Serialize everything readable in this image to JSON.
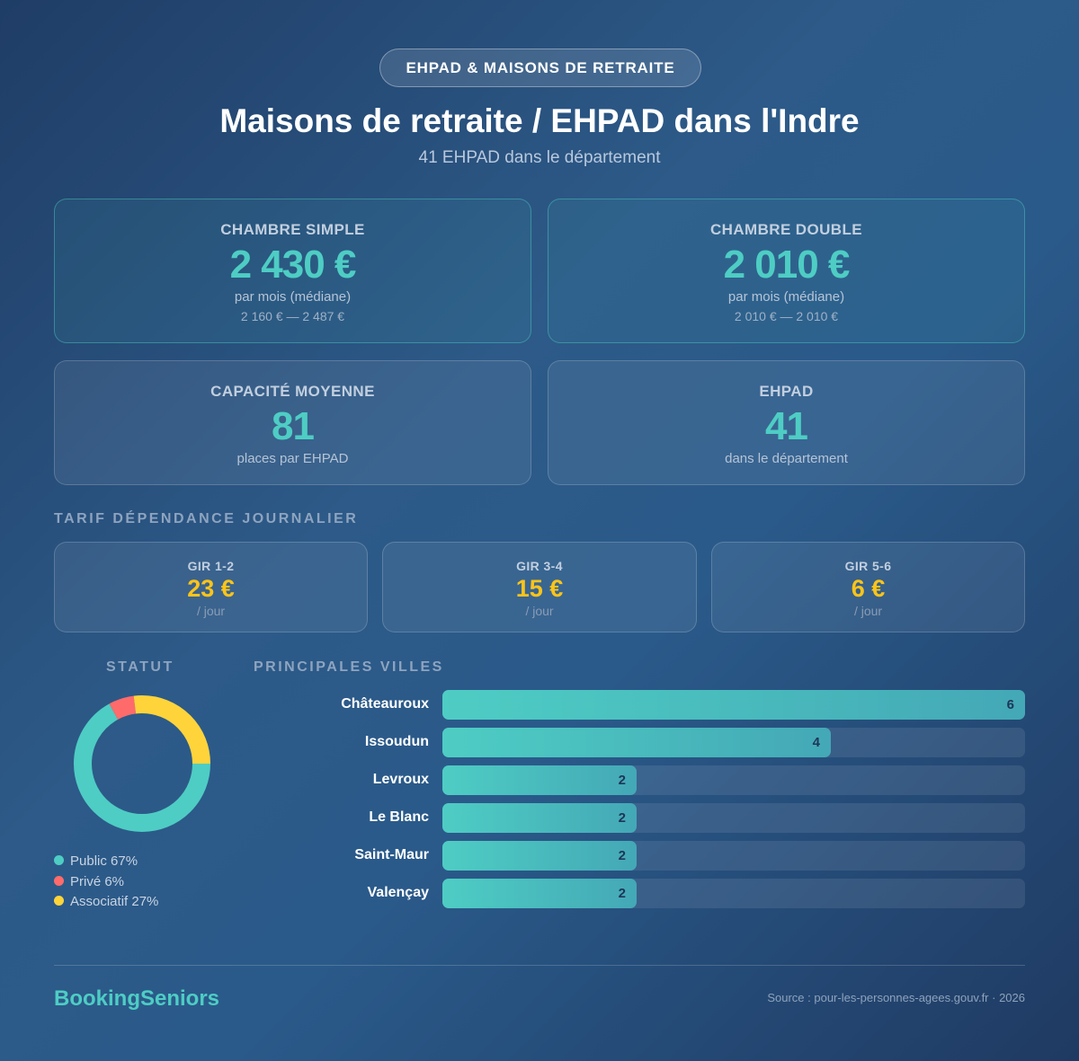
{
  "badge": "EHPAD & MAISONS DE RETRAITE",
  "title": "Maisons de retraite / EHPAD dans l'Indre",
  "subtitle": "41 EHPAD dans le département",
  "cards": [
    {
      "label": "CHAMBRE SIMPLE",
      "value": "2 430 €",
      "sub": "par mois (médiane)",
      "range": "2 160 € — 2 487 €"
    },
    {
      "label": "CHAMBRE DOUBLE",
      "value": "2 010 €",
      "sub": "par mois (médiane)",
      "range": "2 010 € — 2 010 €"
    },
    {
      "label": "CAPACITÉ MOYENNE",
      "value": "81",
      "sub": "places par EHPAD"
    },
    {
      "label": "EHPAD",
      "value": "41",
      "sub": "dans le département"
    }
  ],
  "dependance": {
    "title": "TARIF DÉPENDANCE JOURNALIER",
    "items": [
      {
        "label": "GIR 1-2",
        "value": "23 €",
        "unit": "/ jour"
      },
      {
        "label": "GIR 3-4",
        "value": "15 €",
        "unit": "/ jour"
      },
      {
        "label": "GIR 5-6",
        "value": "6 €",
        "unit": "/ jour"
      }
    ]
  },
  "statut": {
    "title": "STATUT",
    "slices": [
      {
        "label": "Public 67%",
        "value": 67,
        "color": "#4ecdc4"
      },
      {
        "label": "Privé 6%",
        "value": 6,
        "color": "#ff6b6b"
      },
      {
        "label": "Associatif 27%",
        "value": 27,
        "color": "#ffd43b"
      }
    ]
  },
  "villes": {
    "title": "PRINCIPALES VILLES",
    "max": 6,
    "items": [
      {
        "city": "Châteauroux",
        "value": 6
      },
      {
        "city": "Issoudun",
        "value": 4
      },
      {
        "city": "Levroux",
        "value": 2
      },
      {
        "city": "Le Blanc",
        "value": 2
      },
      {
        "city": "Saint-Maur",
        "value": 2
      },
      {
        "city": "Valençay",
        "value": 2
      }
    ]
  },
  "footer": {
    "brand": "BookingSeniors",
    "source": "Source : pour-les-personnes-agees.gouv.fr · 2026"
  }
}
